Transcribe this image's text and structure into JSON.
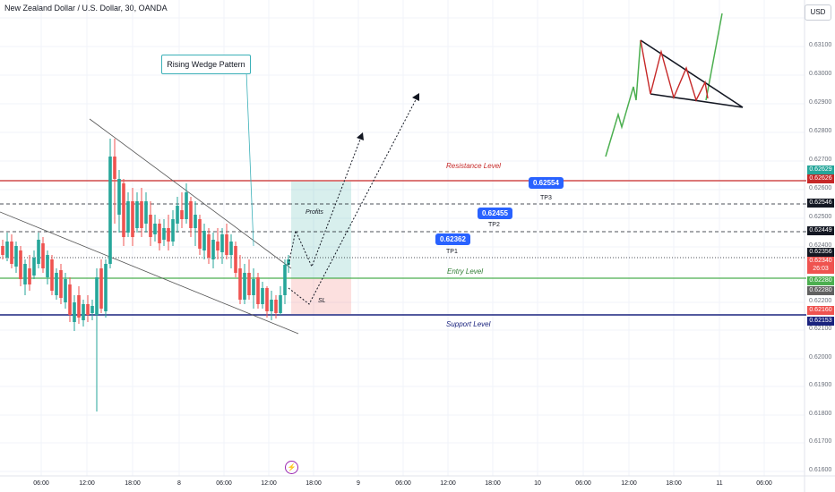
{
  "header": {
    "title": "New Zealand Dollar / U.S. Dollar, 30, OANDA",
    "currency_button": "USD"
  },
  "price_axis": {
    "ticks": [
      "0.63100",
      "0.63000",
      "0.62900",
      "0.62800",
      "0.62700",
      "0.62600",
      "0.62500",
      "0.62400",
      "0.62200",
      "0.62100",
      "0.62000",
      "0.61900",
      "0.61800",
      "0.61700",
      "0.61600"
    ],
    "labels": [
      {
        "text": "0.62629",
        "color": "#26a69a"
      },
      {
        "text": "0.62626",
        "color": "#c62828"
      },
      {
        "text": "0.62546",
        "color": "#131722"
      },
      {
        "text": "0.62449",
        "color": "#131722"
      },
      {
        "text": "0.62356",
        "color": "#131722"
      },
      {
        "text": "0.62340",
        "color": "#ef5350"
      },
      {
        "text": "26:03",
        "color": "#ef5350"
      },
      {
        "text": "0.62280",
        "color": "#4caf50"
      },
      {
        "text": "0.62280",
        "color": "#616161"
      },
      {
        "text": "0.62160",
        "color": "#ef5350"
      },
      {
        "text": "0.62153",
        "color": "#1a237e"
      }
    ]
  },
  "time_axis": [
    "06:00",
    "12:00",
    "18:00",
    "8",
    "06:00",
    "12:00",
    "18:00",
    "9",
    "06:00",
    "12:00",
    "18:00",
    "10",
    "06:00",
    "12:00",
    "18:00",
    "11",
    "06:00"
  ],
  "annotations": {
    "wedge_label": "Rising Wedge Pattern",
    "resistance": "Resistance Level",
    "support": "Support Level",
    "entry": "Entry Level",
    "profits": "Profits",
    "sl": "SL",
    "tp1_value": "0.62362",
    "tp1_label": "TP1",
    "tp2_value": "0.62455",
    "tp2_label": "TP2",
    "tp3_value": "0.62554",
    "tp3_label": "TP3"
  },
  "colors": {
    "up": "#26a69a",
    "down": "#ef5350",
    "resistance": "#c62828",
    "support": "#1a237e",
    "entry": "#4caf50",
    "callout": "#2962ff"
  }
}
